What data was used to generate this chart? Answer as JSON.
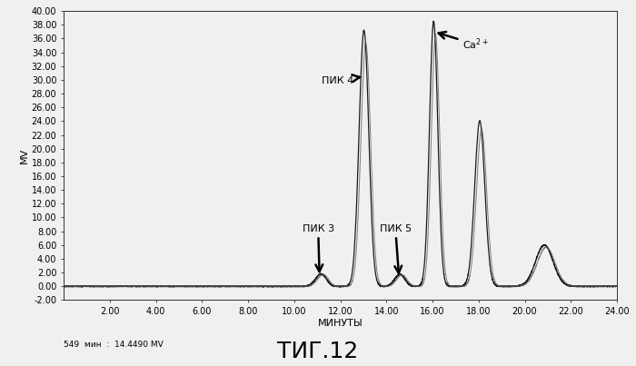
{
  "title": "ΤИГ.12",
  "xlabel": "МИНУТЫ",
  "ylabel": "МV",
  "xlim": [
    0,
    24.0
  ],
  "ylim": [
    -2.0,
    40.0
  ],
  "yticks": [
    -2.0,
    0.0,
    2.0,
    4.0,
    6.0,
    8.0,
    10.0,
    12.0,
    14.0,
    16.0,
    18.0,
    20.0,
    22.0,
    24.0,
    26.0,
    28.0,
    30.0,
    32.0,
    34.0,
    36.0,
    38.0,
    40.0
  ],
  "xticks": [
    2.0,
    4.0,
    6.0,
    8.0,
    10.0,
    12.0,
    14.0,
    16.0,
    18.0,
    20.0,
    22.0,
    24.0
  ],
  "bottom_label": "549  мин  :  14.4490 MV",
  "background_color": "#f0f0f0",
  "line_color1": "#1a1a1a",
  "line_color2": "#555555",
  "title_fontsize": 18,
  "axis_fontsize": 8,
  "tick_fontsize": 7
}
